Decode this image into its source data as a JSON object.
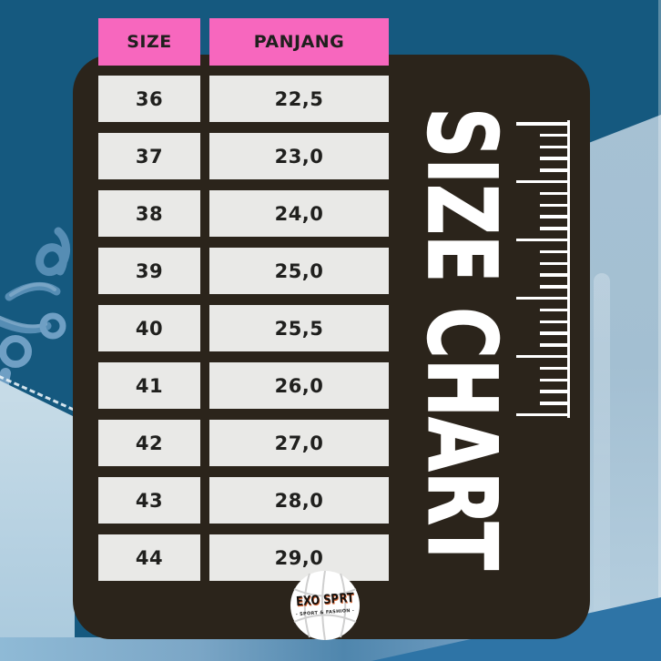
{
  "title": {
    "text": "SIZE CHART"
  },
  "table": {
    "columns": [
      "SIZE",
      "PANJANG"
    ],
    "rows": [
      [
        "36",
        "22,5"
      ],
      [
        "37",
        "23,0"
      ],
      [
        "38",
        "24,0"
      ],
      [
        "39",
        "25,0"
      ],
      [
        "40",
        "25,5"
      ],
      [
        "41",
        "26,0"
      ],
      [
        "42",
        "27,0"
      ],
      [
        "43",
        "28,0"
      ],
      [
        "44",
        "29,0"
      ]
    ]
  },
  "logo": {
    "brand": "EXO SPORT",
    "text_left": "EXO SP",
    "text_right": "RT",
    "subtext": "- SPORT & FASHION -"
  },
  "ruler": {
    "tick_count": 26,
    "major_every": 5
  },
  "colors": {
    "background_blue": "#15597f",
    "panel_dark": "#2b241b",
    "header_pink": "#f767be",
    "row_bg": "#e9e9e7",
    "cell_text": "#20201e",
    "title_white": "#ffffff",
    "shoe_light_blue": "#a9c6da",
    "bottom_wedge_blue": "#2e74a6",
    "logo_accent_orange": "#d4602e"
  },
  "chart_data": {
    "type": "table",
    "title": "SIZE CHART",
    "columns": [
      "SIZE",
      "PANJANG"
    ],
    "rows": [
      [
        "36",
        "22,5"
      ],
      [
        "37",
        "23,0"
      ],
      [
        "38",
        "24,0"
      ],
      [
        "39",
        "25,0"
      ],
      [
        "40",
        "25,5"
      ],
      [
        "41",
        "26,0"
      ],
      [
        "42",
        "27,0"
      ],
      [
        "43",
        "28,0"
      ],
      [
        "44",
        "29,0"
      ]
    ]
  }
}
